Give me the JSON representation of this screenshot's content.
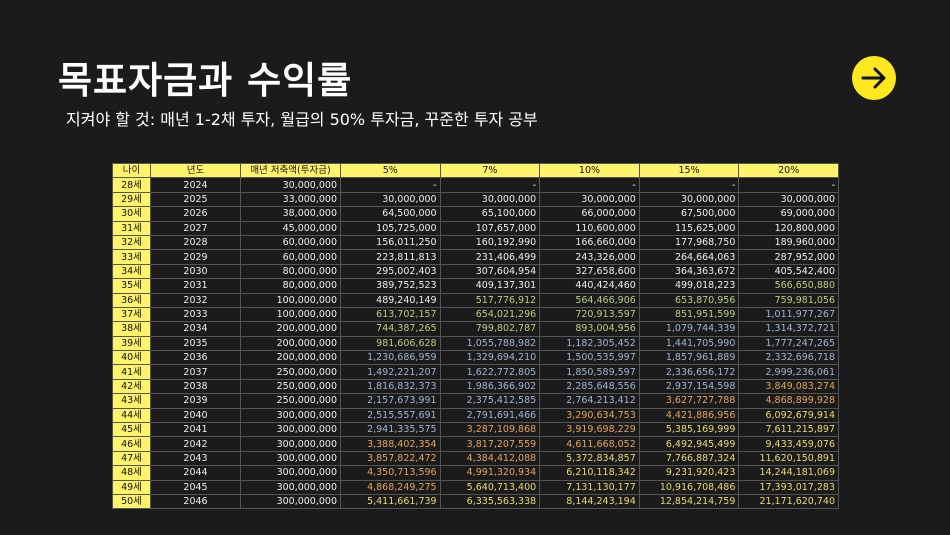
{
  "title": "목표자금과 수익률",
  "subtitle": "지켜야 할 것: 매년 1-2채 투자, 월급의 50% 투자금, 꾸준한 투자 공부",
  "table": {
    "header": [
      "나이",
      "년도",
      "매년 저축액(투자금)",
      "5%",
      "7%",
      "10%",
      "15%",
      "20%"
    ],
    "rows": [
      [
        "28세",
        "2024",
        "30,000,000",
        "-",
        "-",
        "-",
        "-",
        "-"
      ],
      [
        "29세",
        "2025",
        "33,000,000",
        "30,000,000",
        "30,000,000",
        "30,000,000",
        "30,000,000",
        "30,000,000"
      ],
      [
        "30세",
        "2026",
        "38,000,000",
        "64,500,000",
        "65,100,000",
        "66,000,000",
        "67,500,000",
        "69,000,000"
      ],
      [
        "31세",
        "2027",
        "45,000,000",
        "105,725,000",
        "107,657,000",
        "110,600,000",
        "115,625,000",
        "120,800,000"
      ],
      [
        "32세",
        "2028",
        "60,000,000",
        "156,011,250",
        "160,192,990",
        "166,660,000",
        "177,968,750",
        "189,960,000"
      ],
      [
        "33세",
        "2029",
        "60,000,000",
        "223,811,813",
        "231,406,499",
        "243,326,000",
        "264,664,063",
        "287,952,000"
      ],
      [
        "34세",
        "2030",
        "80,000,000",
        "295,002,403",
        "307,604,954",
        "327,658,600",
        "364,363,672",
        "405,542,400"
      ],
      [
        "35세",
        "2031",
        "80,000,000",
        "389,752,523",
        "409,137,301",
        "440,424,460",
        "499,018,223",
        "566,650,880"
      ],
      [
        "36세",
        "2032",
        "100,000,000",
        "489,240,149",
        "517,776,912",
        "564,466,906",
        "653,870,956",
        "759,981,056"
      ],
      [
        "37세",
        "2033",
        "100,000,000",
        "613,702,157",
        "654,021,296",
        "720,913,597",
        "851,951,599",
        "1,011,977,267"
      ],
      [
        "38세",
        "2034",
        "200,000,000",
        "744,387,265",
        "799,802,787",
        "893,004,956",
        "1,079,744,339",
        "1,314,372,721"
      ],
      [
        "39세",
        "2035",
        "200,000,000",
        "981,606,628",
        "1,055,788,982",
        "1,182,305,452",
        "1,441,705,990",
        "1,777,247,265"
      ],
      [
        "40세",
        "2036",
        "200,000,000",
        "1,230,686,959",
        "1,329,694,210",
        "1,500,535,997",
        "1,857,961,889",
        "2,332,696,718"
      ],
      [
        "41세",
        "2037",
        "250,000,000",
        "1,492,221,207",
        "1,622,772,805",
        "1,850,589,597",
        "2,336,656,172",
        "2,999,236,061"
      ],
      [
        "42세",
        "2038",
        "250,000,000",
        "1,816,832,373",
        "1,986,366,902",
        "2,285,648,556",
        "2,937,154,598",
        "3,849,083,274"
      ],
      [
        "43세",
        "2039",
        "250,000,000",
        "2,157,673,991",
        "2,375,412,585",
        "2,764,213,412",
        "3,627,727,788",
        "4,868,899,928"
      ],
      [
        "44세",
        "2040",
        "300,000,000",
        "2,515,557,691",
        "2,791,691,466",
        "3,290,634,753",
        "4,421,886,956",
        "6,092,679,914"
      ],
      [
        "45세",
        "2041",
        "300,000,000",
        "2,941,335,575",
        "3,287,109,868",
        "3,919,698,229",
        "5,385,169,999",
        "7,611,215,897"
      ],
      [
        "46세",
        "2042",
        "300,000,000",
        "3,388,402,354",
        "3,817,207,559",
        "4,611,668,052",
        "6,492,945,499",
        "9,433,459,076"
      ],
      [
        "47세",
        "2043",
        "300,000,000",
        "3,857,822,472",
        "4,384,412,088",
        "5,372,834,857",
        "7,766,887,324",
        "11,620,150,891"
      ],
      [
        "48세",
        "2044",
        "300,000,000",
        "4,350,713,596",
        "4,991,320,934",
        "6,210,118,342",
        "9,231,920,423",
        "14,244,181,069"
      ],
      [
        "49세",
        "2045",
        "300,000,000",
        "4,868,249,275",
        "5,640,713,400",
        "7,131,130,177",
        "10,916,708,486",
        "17,393,017,283"
      ],
      [
        "50세",
        "2046",
        "300,000,000",
        "5,411,661,739",
        "6,335,563,338",
        "8,144,243,194",
        "12,854,214,759",
        "21,171,620,740"
      ]
    ]
  }
}
